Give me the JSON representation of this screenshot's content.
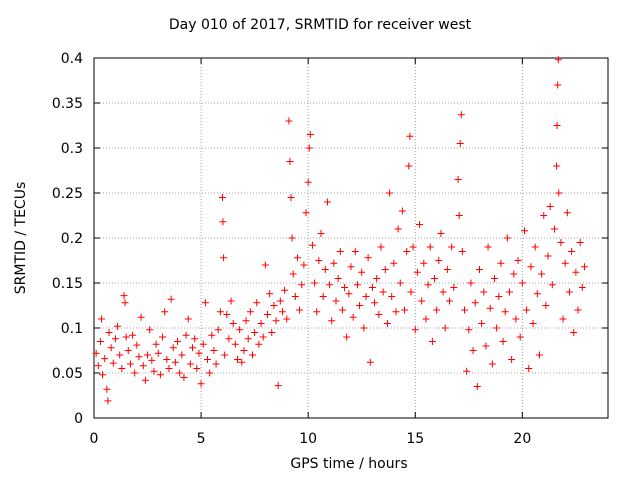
{
  "chart_data": {
    "type": "scatter",
    "title": "Day 010 of 2017, SRMTID for receiver west",
    "xlabel": "GPS time / hours",
    "ylabel": "SRMTID / TECUs",
    "xlim": [
      0,
      24
    ],
    "ylim": [
      0,
      0.4
    ],
    "xticks": [
      0,
      5,
      10,
      15,
      20
    ],
    "yticks": [
      0,
      0.05,
      0.1,
      0.15,
      0.2,
      0.25,
      0.3,
      0.35,
      0.4
    ],
    "xtick_labels": [
      "0",
      "5",
      "10",
      "15",
      "20"
    ],
    "ytick_labels": [
      "0",
      "0.05",
      "0.1",
      "0.15",
      "0.2",
      "0.25",
      "0.3",
      "0.35",
      "0.4"
    ],
    "grid": true,
    "marker": "+",
    "color": "#ff0000",
    "series": [
      {
        "name": "SRMTID",
        "points": [
          [
            0.1,
            0.072
          ],
          [
            0.2,
            0.058
          ],
          [
            0.3,
            0.085
          ],
          [
            0.35,
            0.11
          ],
          [
            0.4,
            0.048
          ],
          [
            0.5,
            0.066
          ],
          [
            0.6,
            0.032
          ],
          [
            0.65,
            0.019
          ],
          [
            0.7,
            0.095
          ],
          [
            0.8,
            0.078
          ],
          [
            0.9,
            0.061
          ],
          [
            1.0,
            0.088
          ],
          [
            1.1,
            0.102
          ],
          [
            1.2,
            0.07
          ],
          [
            1.3,
            0.055
          ],
          [
            1.4,
            0.136
          ],
          [
            1.45,
            0.128
          ],
          [
            1.5,
            0.09
          ],
          [
            1.6,
            0.075
          ],
          [
            1.7,
            0.06
          ],
          [
            1.8,
            0.092
          ],
          [
            1.9,
            0.05
          ],
          [
            2.0,
            0.081
          ],
          [
            2.1,
            0.068
          ],
          [
            2.2,
            0.112
          ],
          [
            2.3,
            0.058
          ],
          [
            2.4,
            0.042
          ],
          [
            2.5,
            0.07
          ],
          [
            2.6,
            0.098
          ],
          [
            2.7,
            0.064
          ],
          [
            2.8,
            0.052
          ],
          [
            2.9,
            0.082
          ],
          [
            3.0,
            0.072
          ],
          [
            3.1,
            0.048
          ],
          [
            3.2,
            0.09
          ],
          [
            3.3,
            0.118
          ],
          [
            3.4,
            0.065
          ],
          [
            3.5,
            0.055
          ],
          [
            3.6,
            0.132
          ],
          [
            3.7,
            0.078
          ],
          [
            3.8,
            0.062
          ],
          [
            3.9,
            0.085
          ],
          [
            4.0,
            0.05
          ],
          [
            4.1,
            0.07
          ],
          [
            4.2,
            0.045
          ],
          [
            4.3,
            0.092
          ],
          [
            4.4,
            0.11
          ],
          [
            4.5,
            0.06
          ],
          [
            4.6,
            0.078
          ],
          [
            4.7,
            0.088
          ],
          [
            4.8,
            0.055
          ],
          [
            4.9,
            0.072
          ],
          [
            5.0,
            0.038
          ],
          [
            5.1,
            0.082
          ],
          [
            5.2,
            0.128
          ],
          [
            5.3,
            0.065
          ],
          [
            5.4,
            0.05
          ],
          [
            5.5,
            0.092
          ],
          [
            5.6,
            0.075
          ],
          [
            5.7,
            0.06
          ],
          [
            5.8,
            0.098
          ],
          [
            5.9,
            0.118
          ],
          [
            6.0,
            0.245
          ],
          [
            6.02,
            0.218
          ],
          [
            6.05,
            0.178
          ],
          [
            6.1,
            0.07
          ],
          [
            6.2,
            0.115
          ],
          [
            6.3,
            0.088
          ],
          [
            6.4,
            0.13
          ],
          [
            6.5,
            0.105
          ],
          [
            6.6,
            0.082
          ],
          [
            6.7,
            0.065
          ],
          [
            6.8,
            0.098
          ],
          [
            6.9,
            0.062
          ],
          [
            7.0,
            0.075
          ],
          [
            7.1,
            0.108
          ],
          [
            7.2,
            0.088
          ],
          [
            7.3,
            0.118
          ],
          [
            7.4,
            0.07
          ],
          [
            7.5,
            0.095
          ],
          [
            7.6,
            0.128
          ],
          [
            7.7,
            0.082
          ],
          [
            7.8,
            0.105
          ],
          [
            7.9,
            0.09
          ],
          [
            8.0,
            0.17
          ],
          [
            8.1,
            0.115
          ],
          [
            8.2,
            0.138
          ],
          [
            8.3,
            0.095
          ],
          [
            8.4,
            0.125
          ],
          [
            8.5,
            0.108
          ],
          [
            8.6,
            0.036
          ],
          [
            8.7,
            0.13
          ],
          [
            8.8,
            0.118
          ],
          [
            8.9,
            0.142
          ],
          [
            9.0,
            0.11
          ],
          [
            9.1,
            0.33
          ],
          [
            9.15,
            0.285
          ],
          [
            9.2,
            0.245
          ],
          [
            9.25,
            0.2
          ],
          [
            9.3,
            0.16
          ],
          [
            9.4,
            0.135
          ],
          [
            9.5,
            0.178
          ],
          [
            9.6,
            0.12
          ],
          [
            9.7,
            0.148
          ],
          [
            9.8,
            0.17
          ],
          [
            9.9,
            0.228
          ],
          [
            10.0,
            0.262
          ],
          [
            10.05,
            0.3
          ],
          [
            10.1,
            0.315
          ],
          [
            10.2,
            0.192
          ],
          [
            10.3,
            0.15
          ],
          [
            10.4,
            0.118
          ],
          [
            10.5,
            0.175
          ],
          [
            10.6,
            0.205
          ],
          [
            10.7,
            0.135
          ],
          [
            10.8,
            0.165
          ],
          [
            10.9,
            0.24
          ],
          [
            11.0,
            0.148
          ],
          [
            11.1,
            0.108
          ],
          [
            11.2,
            0.172
          ],
          [
            11.3,
            0.13
          ],
          [
            11.4,
            0.155
          ],
          [
            11.5,
            0.185
          ],
          [
            11.6,
            0.12
          ],
          [
            11.7,
            0.145
          ],
          [
            11.8,
            0.09
          ],
          [
            11.9,
            0.138
          ],
          [
            12.0,
            0.168
          ],
          [
            12.1,
            0.112
          ],
          [
            12.2,
            0.185
          ],
          [
            12.3,
            0.148
          ],
          [
            12.4,
            0.125
          ],
          [
            12.5,
            0.162
          ],
          [
            12.6,
            0.1
          ],
          [
            12.7,
            0.135
          ],
          [
            12.8,
            0.178
          ],
          [
            12.9,
            0.062
          ],
          [
            13.0,
            0.145
          ],
          [
            13.1,
            0.128
          ],
          [
            13.2,
            0.155
          ],
          [
            13.3,
            0.115
          ],
          [
            13.4,
            0.19
          ],
          [
            13.5,
            0.14
          ],
          [
            13.6,
            0.165
          ],
          [
            13.7,
            0.105
          ],
          [
            13.8,
            0.25
          ],
          [
            13.9,
            0.135
          ],
          [
            14.0,
            0.172
          ],
          [
            14.1,
            0.118
          ],
          [
            14.2,
            0.21
          ],
          [
            14.3,
            0.15
          ],
          [
            14.4,
            0.23
          ],
          [
            14.5,
            0.12
          ],
          [
            14.6,
            0.185
          ],
          [
            14.7,
            0.28
          ],
          [
            14.75,
            0.313
          ],
          [
            14.8,
            0.14
          ],
          [
            14.9,
            0.19
          ],
          [
            15.0,
            0.098
          ],
          [
            15.1,
            0.162
          ],
          [
            15.2,
            0.215
          ],
          [
            15.3,
            0.13
          ],
          [
            15.4,
            0.172
          ],
          [
            15.5,
            0.11
          ],
          [
            15.6,
            0.148
          ],
          [
            15.7,
            0.19
          ],
          [
            15.8,
            0.085
          ],
          [
            15.9,
            0.155
          ],
          [
            16.0,
            0.12
          ],
          [
            16.1,
            0.175
          ],
          [
            16.2,
            0.205
          ],
          [
            16.3,
            0.14
          ],
          [
            16.4,
            0.1
          ],
          [
            16.5,
            0.165
          ],
          [
            16.6,
            0.13
          ],
          [
            16.7,
            0.19
          ],
          [
            16.8,
            0.145
          ],
          [
            17.0,
            0.265
          ],
          [
            17.05,
            0.225
          ],
          [
            17.1,
            0.305
          ],
          [
            17.15,
            0.337
          ],
          [
            17.2,
            0.185
          ],
          [
            17.3,
            0.12
          ],
          [
            17.4,
            0.052
          ],
          [
            17.5,
            0.098
          ],
          [
            17.6,
            0.15
          ],
          [
            17.7,
            0.075
          ],
          [
            17.8,
            0.128
          ],
          [
            17.9,
            0.035
          ],
          [
            18.0,
            0.165
          ],
          [
            18.1,
            0.105
          ],
          [
            18.2,
            0.14
          ],
          [
            18.3,
            0.08
          ],
          [
            18.4,
            0.19
          ],
          [
            18.5,
            0.122
          ],
          [
            18.6,
            0.06
          ],
          [
            18.7,
            0.155
          ],
          [
            18.8,
            0.1
          ],
          [
            18.9,
            0.135
          ],
          [
            19.0,
            0.172
          ],
          [
            19.1,
            0.085
          ],
          [
            19.2,
            0.118
          ],
          [
            19.3,
            0.2
          ],
          [
            19.4,
            0.14
          ],
          [
            19.5,
            0.065
          ],
          [
            19.6,
            0.16
          ],
          [
            19.7,
            0.11
          ],
          [
            19.8,
            0.175
          ],
          [
            19.9,
            0.09
          ],
          [
            20.0,
            0.15
          ],
          [
            20.1,
            0.208
          ],
          [
            20.2,
            0.12
          ],
          [
            20.3,
            0.055
          ],
          [
            20.4,
            0.168
          ],
          [
            20.5,
            0.105
          ],
          [
            20.6,
            0.19
          ],
          [
            20.7,
            0.138
          ],
          [
            20.8,
            0.07
          ],
          [
            20.9,
            0.16
          ],
          [
            21.0,
            0.225
          ],
          [
            21.1,
            0.125
          ],
          [
            21.2,
            0.18
          ],
          [
            21.3,
            0.235
          ],
          [
            21.4,
            0.148
          ],
          [
            21.5,
            0.21
          ],
          [
            21.6,
            0.28
          ],
          [
            21.62,
            0.325
          ],
          [
            21.65,
            0.37
          ],
          [
            21.68,
            0.398
          ],
          [
            21.7,
            0.25
          ],
          [
            21.8,
            0.195
          ],
          [
            21.9,
            0.11
          ],
          [
            22.0,
            0.172
          ],
          [
            22.1,
            0.228
          ],
          [
            22.2,
            0.14
          ],
          [
            22.3,
            0.185
          ],
          [
            22.4,
            0.095
          ],
          [
            22.5,
            0.162
          ],
          [
            22.6,
            0.12
          ],
          [
            22.7,
            0.195
          ],
          [
            22.8,
            0.145
          ],
          [
            22.9,
            0.168
          ]
        ]
      }
    ]
  }
}
